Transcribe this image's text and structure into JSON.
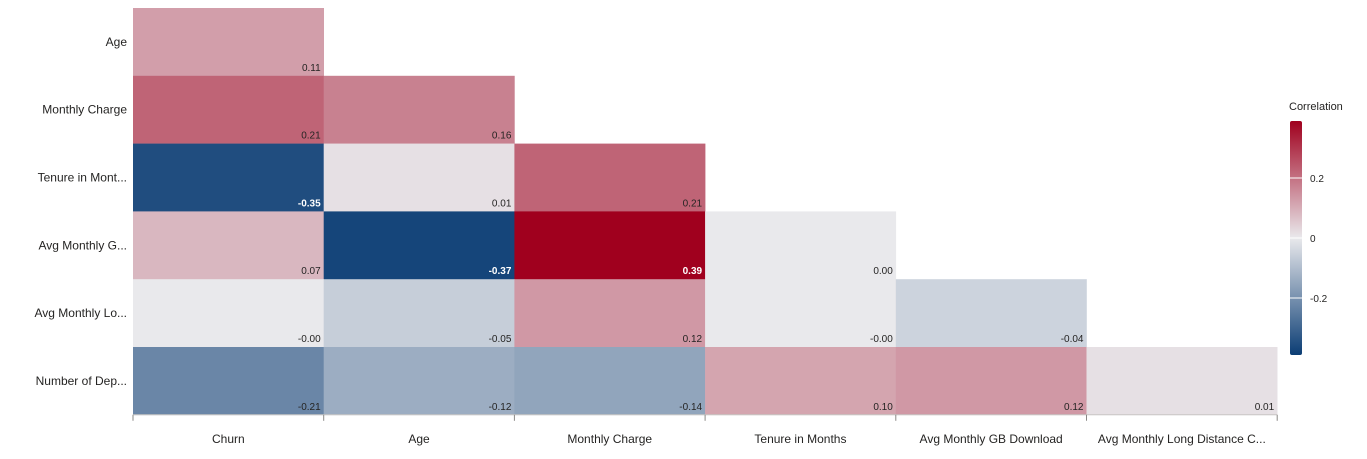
{
  "chart_data": {
    "type": "heatmap",
    "rows": [
      "Age",
      "Monthly Charge",
      "Tenure in Mont...",
      "Avg Monthly G...",
      "Avg Monthly Lo...",
      "Number of Dep..."
    ],
    "columns": [
      "Churn",
      "Age",
      "Monthly Charge",
      "Tenure in Months",
      "Avg Monthly GB Download",
      "Avg Monthly Long Distance C..."
    ],
    "cells": [
      [
        {
          "text": "0.11",
          "value": 0.11
        }
      ],
      [
        {
          "text": "0.21",
          "value": 0.21
        },
        {
          "text": "0.16",
          "value": 0.16
        }
      ],
      [
        {
          "text": "-0.35",
          "value": -0.35
        },
        {
          "text": "0.01",
          "value": 0.01
        },
        {
          "text": "0.21",
          "value": 0.21
        }
      ],
      [
        {
          "text": "0.07",
          "value": 0.07
        },
        {
          "text": "-0.37",
          "value": -0.37
        },
        {
          "text": "0.39",
          "value": 0.39
        },
        {
          "text": "0.00",
          "value": 0.0
        }
      ],
      [
        {
          "text": "-0.00",
          "value": -0.0
        },
        {
          "text": "-0.05",
          "value": -0.05
        },
        {
          "text": "0.12",
          "value": 0.12
        },
        {
          "text": "-0.00",
          "value": -0.0
        },
        {
          "text": "-0.04",
          "value": -0.04
        }
      ],
      [
        {
          "text": "-0.21",
          "value": -0.21
        },
        {
          "text": "-0.12",
          "value": -0.12
        },
        {
          "text": "-0.14",
          "value": -0.14
        },
        {
          "text": "0.10",
          "value": 0.1
        },
        {
          "text": "0.12",
          "value": 0.12
        },
        {
          "text": "0.01",
          "value": 0.01
        }
      ]
    ],
    "legend": {
      "title": "Correlation",
      "ticks": [
        {
          "text": "0.2",
          "value": 0.2
        },
        {
          "text": "0",
          "value": 0
        },
        {
          "text": "-0.2",
          "value": -0.2
        }
      ],
      "range": [
        -0.39,
        0.39
      ],
      "placement": "right"
    },
    "colors": {
      "positive": "#a0001e",
      "neutral": "#e9e9ec",
      "negative": "#0b3d74"
    }
  }
}
